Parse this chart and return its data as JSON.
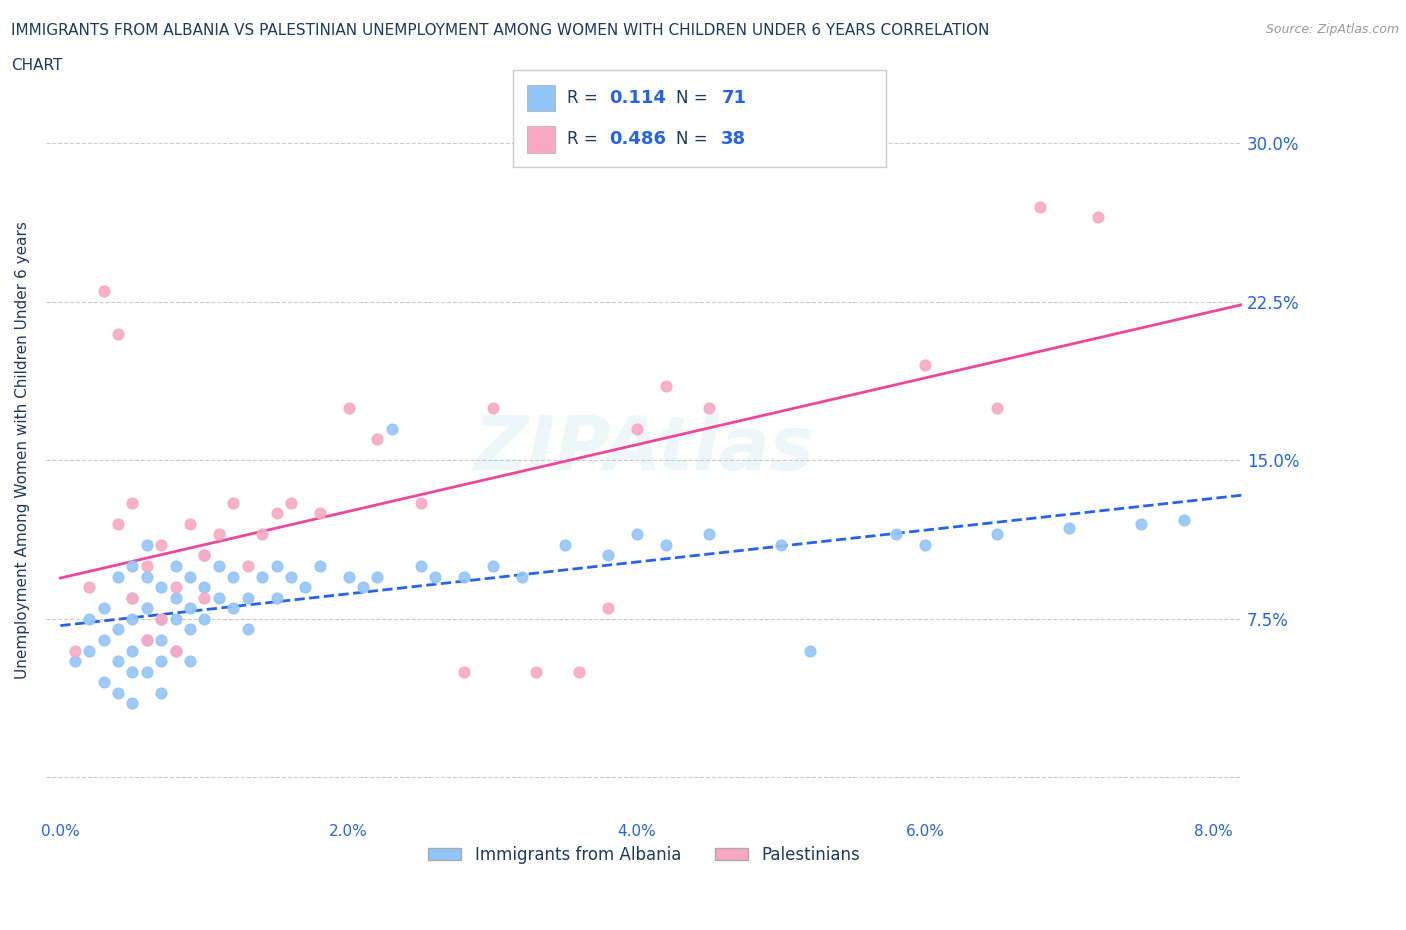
{
  "title_line1": "IMMIGRANTS FROM ALBANIA VS PALESTINIAN UNEMPLOYMENT AMONG WOMEN WITH CHILDREN UNDER 6 YEARS CORRELATION",
  "title_line2": "CHART",
  "source": "Source: ZipAtlas.com",
  "ylabel": "Unemployment Among Women with Children Under 6 years",
  "xlim": [
    -0.001,
    0.082
  ],
  "ylim": [
    -0.02,
    0.33
  ],
  "xticks": [
    0.0,
    0.02,
    0.04,
    0.06,
    0.08
  ],
  "xticklabels": [
    "0.0%",
    "2.0%",
    "4.0%",
    "6.0%",
    "8.0%"
  ],
  "yticks": [
    0.0,
    0.075,
    0.15,
    0.225,
    0.3
  ],
  "yticklabels": [
    "",
    "7.5%",
    "15.0%",
    "22.5%",
    "30.0%"
  ],
  "color_albania": "#92c5f7",
  "color_palestinians": "#f9a8c4",
  "color_blue_dark": "#2563eb",
  "color_pink_dark": "#ec4899",
  "color_text": "#1e3a5f",
  "watermark_text": "ZIPAtlas",
  "background_color": "#ffffff",
  "grid_color": "#cccccc",
  "albania_x": [
    0.001,
    0.002,
    0.002,
    0.003,
    0.003,
    0.003,
    0.004,
    0.004,
    0.004,
    0.004,
    0.005,
    0.005,
    0.005,
    0.005,
    0.005,
    0.005,
    0.006,
    0.006,
    0.006,
    0.006,
    0.006,
    0.007,
    0.007,
    0.007,
    0.007,
    0.007,
    0.008,
    0.008,
    0.008,
    0.008,
    0.009,
    0.009,
    0.009,
    0.009,
    0.01,
    0.01,
    0.01,
    0.011,
    0.011,
    0.012,
    0.012,
    0.013,
    0.013,
    0.014,
    0.015,
    0.015,
    0.016,
    0.017,
    0.018,
    0.02,
    0.021,
    0.022,
    0.023,
    0.025,
    0.026,
    0.028,
    0.03,
    0.032,
    0.035,
    0.038,
    0.04,
    0.042,
    0.045,
    0.05,
    0.052,
    0.058,
    0.06,
    0.065,
    0.07,
    0.075,
    0.078
  ],
  "albania_y": [
    0.055,
    0.075,
    0.06,
    0.08,
    0.065,
    0.045,
    0.095,
    0.07,
    0.055,
    0.04,
    0.1,
    0.085,
    0.075,
    0.06,
    0.05,
    0.035,
    0.11,
    0.095,
    0.08,
    0.065,
    0.05,
    0.09,
    0.075,
    0.065,
    0.055,
    0.04,
    0.1,
    0.085,
    0.075,
    0.06,
    0.095,
    0.08,
    0.07,
    0.055,
    0.105,
    0.09,
    0.075,
    0.1,
    0.085,
    0.095,
    0.08,
    0.085,
    0.07,
    0.095,
    0.1,
    0.085,
    0.095,
    0.09,
    0.1,
    0.095,
    0.09,
    0.095,
    0.165,
    0.1,
    0.095,
    0.095,
    0.1,
    0.095,
    0.11,
    0.105,
    0.115,
    0.11,
    0.115,
    0.11,
    0.06,
    0.115,
    0.11,
    0.115,
    0.118,
    0.12,
    0.122
  ],
  "palestinians_x": [
    0.001,
    0.002,
    0.003,
    0.004,
    0.004,
    0.005,
    0.005,
    0.006,
    0.006,
    0.007,
    0.007,
    0.008,
    0.008,
    0.009,
    0.01,
    0.01,
    0.011,
    0.012,
    0.013,
    0.014,
    0.015,
    0.016,
    0.018,
    0.02,
    0.022,
    0.025,
    0.028,
    0.03,
    0.033,
    0.036,
    0.038,
    0.04,
    0.042,
    0.045,
    0.06,
    0.065,
    0.068,
    0.072
  ],
  "palestinians_y": [
    0.06,
    0.09,
    0.23,
    0.21,
    0.12,
    0.13,
    0.085,
    0.1,
    0.065,
    0.11,
    0.075,
    0.09,
    0.06,
    0.12,
    0.105,
    0.085,
    0.115,
    0.13,
    0.1,
    0.115,
    0.125,
    0.13,
    0.125,
    0.175,
    0.16,
    0.13,
    0.05,
    0.175,
    0.05,
    0.05,
    0.08,
    0.165,
    0.185,
    0.175,
    0.195,
    0.175,
    0.27,
    0.265
  ]
}
